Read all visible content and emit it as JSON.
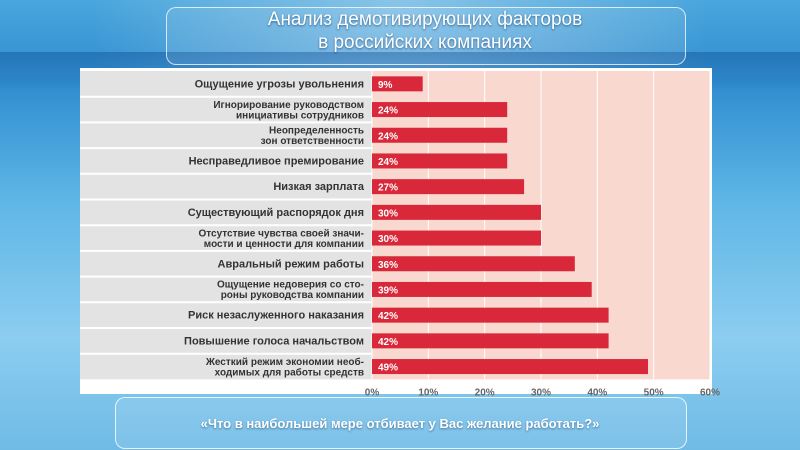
{
  "title_line1": "Анализ демотивирующих факторов",
  "title_line2": "в российских компаниях",
  "question": "«Что в наибольшей мере отбивает у Вас желание работать?»",
  "colors": {
    "bar": "#d8283a",
    "plot_bg": "#f9d8d0",
    "label_bg": "#e3e3e3"
  },
  "chart_data": {
    "type": "bar",
    "orientation": "horizontal",
    "categories": [
      [
        "Ощущение угрозы увольнения"
      ],
      [
        "Игнорирование руководством",
        "инициативы сотрудников"
      ],
      [
        "Неопределенность",
        "зон ответственности"
      ],
      [
        "Несправедливое премирование"
      ],
      [
        "Низкая зарплата"
      ],
      [
        "Существующий распорядок дня"
      ],
      [
        "Отсутствие чувства своей значи-",
        "мости и ценности для компании"
      ],
      [
        "Авральный режим работы"
      ],
      [
        "Ощущение недоверия со сто-",
        "роны руководства компании"
      ],
      [
        "Риск незаслуженного наказания"
      ],
      [
        "Повышение голоса начальством"
      ],
      [
        "Жесткий режим экономии необ-",
        "ходимых для работы средств"
      ]
    ],
    "values": [
      9,
      24,
      24,
      24,
      27,
      30,
      30,
      36,
      39,
      42,
      42,
      49
    ],
    "value_labels": [
      "9%",
      "24%",
      "24%",
      "24%",
      "27%",
      "30%",
      "30%",
      "36%",
      "39%",
      "42%",
      "42%",
      "49%"
    ],
    "xlim": [
      0,
      60
    ],
    "ticks": [
      "0%",
      "10%",
      "20%",
      "30%",
      "40%",
      "50%",
      "60%"
    ],
    "grid": true
  }
}
